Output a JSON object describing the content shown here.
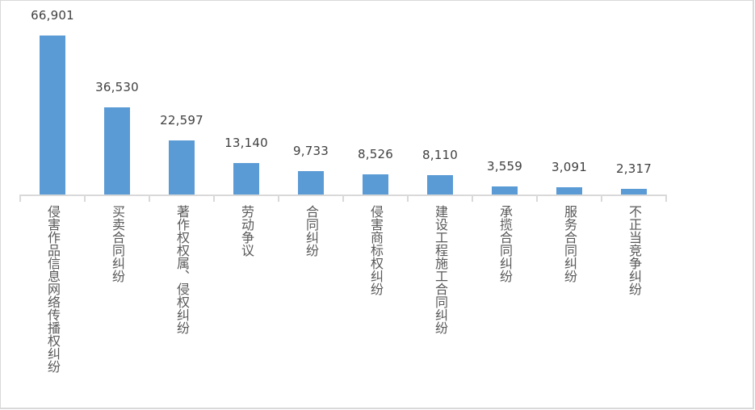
{
  "chart_data": {
    "type": "bar",
    "title": "",
    "xlabel": "",
    "ylabel": "",
    "grid": false,
    "legend": null,
    "ylim": [
      0,
      70000
    ],
    "data_labels": true,
    "bar_color": "#5b9bd5",
    "categories": [
      "侵害作品信息网络传播权纠纷",
      "买卖合同纠纷",
      "著作权权属、侵权纠纷",
      "劳动争议",
      "合同纠纷",
      "侵害商标权纠纷",
      "建设工程施工合同纠纷",
      "承揽合同纠纷",
      "服务合同纠纷",
      "不正当竞争纠纷"
    ],
    "values": [
      66901,
      36530,
      22597,
      13140,
      9733,
      8526,
      8110,
      3559,
      3091,
      2317
    ],
    "value_labels": [
      "66,901",
      "36,530",
      "22,597",
      "13,140",
      "9,733",
      "8,526",
      "8,110",
      "3,559",
      "3,091",
      "2,317"
    ]
  }
}
